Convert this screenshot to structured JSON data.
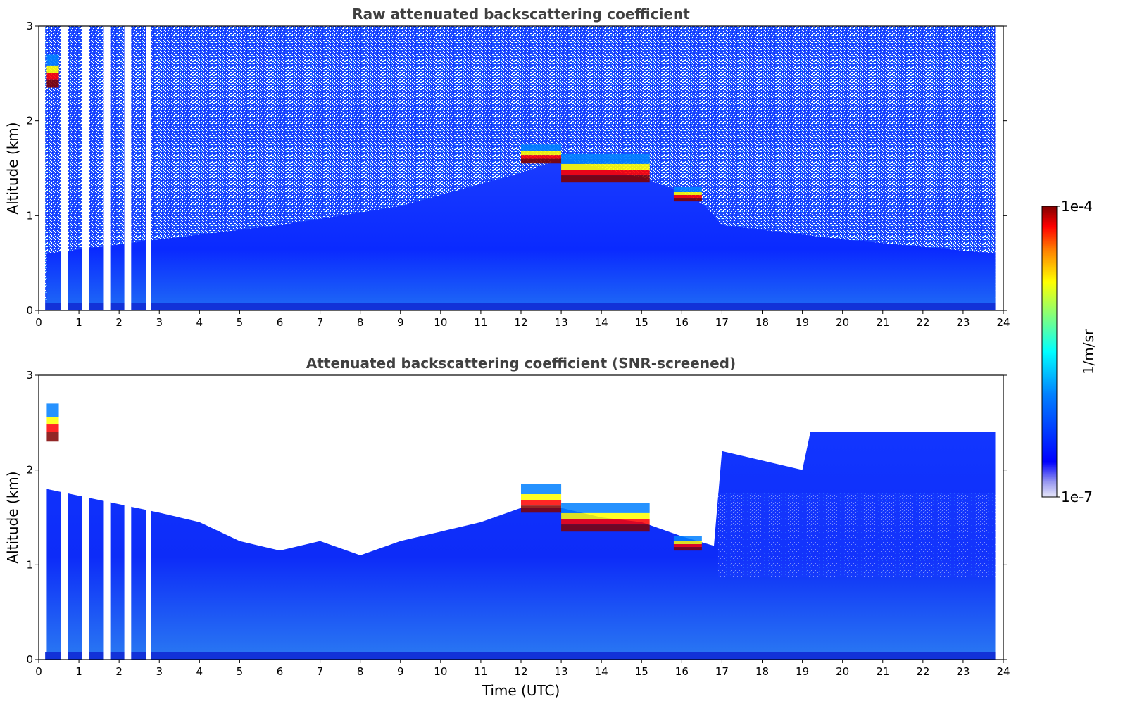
{
  "colors": {
    "background": "#ffffff",
    "title": "#404040",
    "jet": [
      "#00007f",
      "#0000ff",
      "#007fff",
      "#00ffff",
      "#7fff7f",
      "#ffff00",
      "#ff7f00",
      "#ff0000",
      "#7f0000"
    ],
    "faint": "#dcdcf5"
  },
  "colorbar": {
    "max_label": "1e-4",
    "min_label": "1e-7",
    "unit_label": "1/m/sr",
    "scale": "log",
    "colormap": "jet"
  },
  "chart_data": [
    {
      "type": "heatmap",
      "title": "Raw attenuated backscattering coefficient",
      "xlabel": "",
      "ylabel": "Altitude (km)",
      "xlim": [
        0,
        24
      ],
      "ylim": [
        0,
        3
      ],
      "xticks": [
        0,
        1,
        2,
        3,
        4,
        5,
        6,
        7,
        8,
        9,
        10,
        11,
        12,
        13,
        14,
        15,
        16,
        17,
        18,
        19,
        20,
        21,
        22,
        23,
        24
      ],
      "yticks": [
        0,
        1,
        2,
        3
      ],
      "data_gaps_utc": [
        [
          0.55,
          0.72
        ],
        [
          1.08,
          1.25
        ],
        [
          1.62,
          1.78
        ],
        [
          2.13,
          2.3
        ],
        [
          2.68,
          2.8
        ]
      ],
      "data_end_utc": 23.8,
      "boundary_layer_top_km": [
        [
          0.2,
          0.6
        ],
        [
          3,
          0.75
        ],
        [
          6,
          0.9
        ],
        [
          9,
          1.1
        ],
        [
          12,
          1.45
        ],
        [
          13,
          1.6
        ],
        [
          14,
          1.5
        ],
        [
          15,
          1.4
        ],
        [
          16,
          1.25
        ],
        [
          16.6,
          1.1
        ],
        [
          17,
          0.9
        ],
        [
          20,
          0.75
        ],
        [
          23.8,
          0.6
        ]
      ],
      "cloud_layers": [
        {
          "t_start": 0.2,
          "t_end": 0.5,
          "alt_bottom_km": 2.35,
          "alt_top_km": 2.7,
          "intensity": "high"
        },
        {
          "t_start": 12.0,
          "t_end": 13.0,
          "alt_bottom_km": 1.55,
          "alt_top_km": 1.75,
          "intensity": "high"
        },
        {
          "t_start": 13.0,
          "t_end": 15.2,
          "alt_bottom_km": 1.35,
          "alt_top_km": 1.65,
          "intensity": "high"
        },
        {
          "t_start": 15.8,
          "t_end": 16.5,
          "alt_bottom_km": 1.15,
          "alt_top_km": 1.3,
          "intensity": "high"
        }
      ]
    },
    {
      "type": "heatmap",
      "title": "Attenuated backscattering coefficient (SNR-screened)",
      "xlabel": "Time (UTC)",
      "ylabel": "Altitude (km)",
      "xlim": [
        0,
        24
      ],
      "ylim": [
        0,
        3
      ],
      "xticks": [
        0,
        1,
        2,
        3,
        4,
        5,
        6,
        7,
        8,
        9,
        10,
        11,
        12,
        13,
        14,
        15,
        16,
        17,
        18,
        19,
        20,
        21,
        22,
        23,
        24
      ],
      "yticks": [
        0,
        1,
        2,
        3
      ],
      "data_gaps_utc": [
        [
          0.55,
          0.72
        ],
        [
          1.08,
          1.25
        ],
        [
          1.62,
          1.78
        ],
        [
          2.13,
          2.3
        ],
        [
          2.68,
          2.8
        ]
      ],
      "data_end_utc": 23.8,
      "signal_top_km": [
        [
          0.2,
          1.8
        ],
        [
          3,
          1.55
        ],
        [
          4,
          1.45
        ],
        [
          5,
          1.25
        ],
        [
          6,
          1.15
        ],
        [
          7,
          1.25
        ],
        [
          8,
          1.1
        ],
        [
          9,
          1.25
        ],
        [
          10,
          1.35
        ],
        [
          11,
          1.45
        ],
        [
          12,
          1.6
        ],
        [
          13,
          1.6
        ],
        [
          14,
          1.5
        ],
        [
          15,
          1.45
        ],
        [
          16,
          1.3
        ],
        [
          16.8,
          1.2
        ],
        [
          17,
          2.2
        ],
        [
          19,
          2.0
        ],
        [
          19.2,
          2.4
        ],
        [
          23.8,
          2.4
        ]
      ],
      "cloud_layers": [
        {
          "t_start": 0.2,
          "t_end": 0.5,
          "alt_bottom_km": 2.3,
          "alt_top_km": 2.7,
          "intensity": "high"
        },
        {
          "t_start": 12.0,
          "t_end": 13.0,
          "alt_bottom_km": 1.55,
          "alt_top_km": 1.85,
          "intensity": "high"
        },
        {
          "t_start": 13.0,
          "t_end": 15.2,
          "alt_bottom_km": 1.35,
          "alt_top_km": 1.65,
          "intensity": "high"
        },
        {
          "t_start": 15.8,
          "t_end": 16.5,
          "alt_bottom_km": 1.15,
          "alt_top_km": 1.3,
          "intensity": "high"
        }
      ]
    }
  ]
}
